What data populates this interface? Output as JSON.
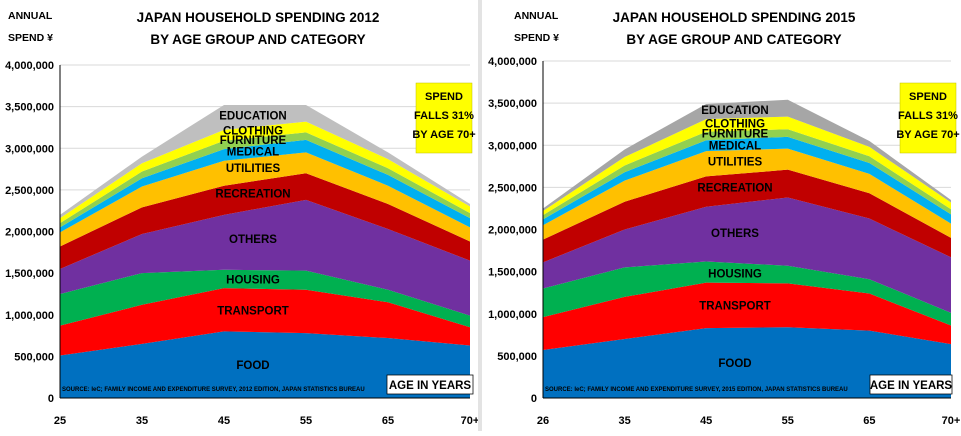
{
  "charts": [
    {
      "title_line1": "JAPAN HOUSEHOLD SPENDING 2012",
      "title_line2": "BY AGE GROUP AND CATEGORY",
      "ylabel_line1": "ANNUAL",
      "ylabel_line2": "SPEND ¥",
      "note_lines": [
        "SPEND",
        "FALLS 31%",
        "BY AGE 70+"
      ],
      "source": "SOURCE: IeC; FAMILY INCOME AND EXPENDITURE SURVEY, 2012 EDITION, JAPAN STATISTICS BUREAU",
      "x_unit_label": "AGE IN YEARS",
      "yticks": [
        "0",
        "500,000",
        "1,000,000",
        "1,500,000",
        "2,000,000",
        "2,500,000",
        "3,000,000",
        "3,500,000",
        "4,000,000"
      ]
    },
    {
      "title_line1": "JAPAN HOUSEHOLD SPENDING 2015",
      "title_line2": "BY AGE GROUP AND CATEGORY",
      "ylabel_line1": "ANNUAL",
      "ylabel_line2": "SPEND ¥",
      "note_lines": [
        "SPEND",
        "FALLS 31%",
        "BY AGE 70+"
      ],
      "source": "SOURCE: IeC; FAMILY INCOME AND EXPENDITURE SURVEY, 2015 EDITION, JAPAN STATISTICS BUREAU",
      "x_unit_label": "AGE IN YEARS",
      "yticks": [
        "0",
        "500,000",
        "1,000,000",
        "1,500,000",
        "2,000,000",
        "2,500,000",
        "3,000,000",
        "3,500,000",
        "4,000,000"
      ]
    }
  ],
  "chart_data": [
    {
      "type": "area",
      "stacked": true,
      "title": "JAPAN HOUSEHOLD SPENDING 2012 BY AGE GROUP AND CATEGORY",
      "ylabel": "ANNUAL SPEND ¥",
      "xlabel": "AGE IN YEARS",
      "categories": [
        "25",
        "35",
        "45",
        "55",
        "65",
        "70+"
      ],
      "ylim": [
        0,
        4000000
      ],
      "grid": true,
      "series": [
        {
          "name": "FOOD",
          "color": "#0070c0",
          "values": [
            510000,
            650000,
            800000,
            780000,
            720000,
            630000
          ]
        },
        {
          "name": "TRANSPORT",
          "color": "#ff0000",
          "values": [
            360000,
            470000,
            520000,
            520000,
            430000,
            220000
          ]
        },
        {
          "name": "HOUSING",
          "color": "#00b050",
          "values": [
            380000,
            380000,
            220000,
            230000,
            150000,
            140000
          ]
        },
        {
          "name": "OTHERS",
          "color": "#7030a0",
          "values": [
            300000,
            470000,
            660000,
            850000,
            730000,
            660000
          ]
        },
        {
          "name": "RECREATION",
          "color": "#c00000",
          "values": [
            270000,
            320000,
            350000,
            320000,
            300000,
            230000
          ]
        },
        {
          "name": "UTILITIES",
          "color": "#ffc000",
          "values": [
            170000,
            250000,
            300000,
            250000,
            220000,
            170000
          ]
        },
        {
          "name": "MEDICAL",
          "color": "#00b0f0",
          "values": [
            60000,
            100000,
            140000,
            150000,
            130000,
            110000
          ]
        },
        {
          "name": "FURNITURE",
          "color": "#92d050",
          "values": [
            50000,
            80000,
            100000,
            90000,
            80000,
            60000
          ]
        },
        {
          "name": "CLOTHING",
          "color": "#ffff00",
          "values": [
            60000,
            100000,
            130000,
            130000,
            110000,
            80000
          ]
        },
        {
          "name": "EDUCATION",
          "color": "#bfbfbf",
          "values": [
            40000,
            80000,
            300000,
            200000,
            80000,
            30000
          ]
        }
      ]
    },
    {
      "type": "area",
      "stacked": true,
      "title": "JAPAN HOUSEHOLD SPENDING 2015 BY AGE GROUP AND CATEGORY",
      "ylabel": "ANNUAL SPEND ¥",
      "xlabel": "AGE IN YEARS",
      "categories": [
        "26",
        "35",
        "45",
        "55",
        "65",
        "70+"
      ],
      "ylim": [
        0,
        4000000
      ],
      "grid": true,
      "series": [
        {
          "name": "FOOD",
          "color": "#0070c0",
          "values": [
            570000,
            700000,
            830000,
            840000,
            800000,
            640000
          ]
        },
        {
          "name": "TRANSPORT",
          "color": "#ff0000",
          "values": [
            390000,
            500000,
            540000,
            520000,
            440000,
            220000
          ]
        },
        {
          "name": "HOUSING",
          "color": "#00b050",
          "values": [
            340000,
            350000,
            250000,
            210000,
            170000,
            150000
          ]
        },
        {
          "name": "OTHERS",
          "color": "#7030a0",
          "values": [
            310000,
            450000,
            650000,
            810000,
            720000,
            660000
          ]
        },
        {
          "name": "RECREATION",
          "color": "#c00000",
          "values": [
            270000,
            330000,
            360000,
            330000,
            300000,
            230000
          ]
        },
        {
          "name": "UTILITIES",
          "color": "#ffc000",
          "values": [
            170000,
            250000,
            300000,
            250000,
            230000,
            170000
          ]
        },
        {
          "name": "MEDICAL",
          "color": "#00b0f0",
          "values": [
            70000,
            100000,
            130000,
            140000,
            130000,
            110000
          ]
        },
        {
          "name": "FURNITURE",
          "color": "#92d050",
          "values": [
            50000,
            80000,
            100000,
            90000,
            80000,
            60000
          ]
        },
        {
          "name": "CLOTHING",
          "color": "#ffff00",
          "values": [
            50000,
            100000,
            150000,
            150000,
            110000,
            80000
          ]
        },
        {
          "name": "EDUCATION",
          "color": "#a6a6a6",
          "values": [
            30000,
            90000,
            180000,
            200000,
            70000,
            30000
          ]
        }
      ]
    }
  ]
}
